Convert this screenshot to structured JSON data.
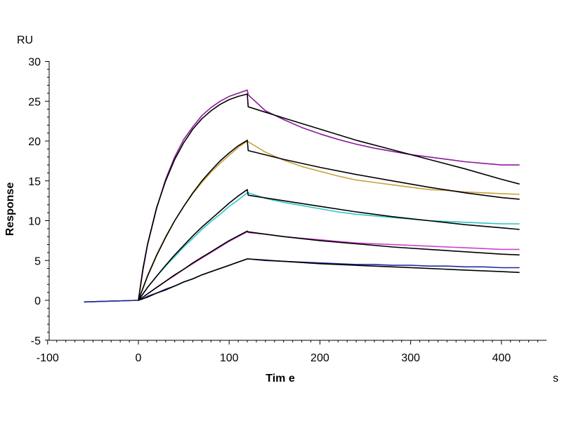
{
  "chart_data": {
    "type": "line",
    "xlabel": "Tim e",
    "ylabel": "Response",
    "x_unit": "s",
    "y_unit": "RU",
    "xlim": [
      -100,
      450
    ],
    "ylim": [
      -5,
      30
    ],
    "x_ticks": [
      -100,
      0,
      100,
      200,
      300,
      400
    ],
    "y_ticks": [
      -5,
      0,
      5,
      10,
      15,
      20,
      25,
      30
    ],
    "x_tick_labels": [
      "-100",
      "0",
      "100",
      "200",
      "300",
      "400"
    ],
    "y_tick_labels": [
      "-5",
      "0",
      "5",
      "10",
      "15",
      "20",
      "25",
      "30"
    ],
    "grid": false,
    "legend": "none",
    "series": [
      {
        "color": "#8b1a9b",
        "x": [
          -60,
          0,
          5,
          10,
          20,
          30,
          40,
          50,
          60,
          70,
          80,
          90,
          100,
          110,
          120,
          121,
          140,
          160,
          180,
          200,
          220,
          240,
          260,
          280,
          300,
          320,
          340,
          360,
          380,
          400,
          420
        ],
        "y": [
          -0.2,
          0,
          3.8,
          6.9,
          11.5,
          15.2,
          18.0,
          20.2,
          21.8,
          23.2,
          24.2,
          25.0,
          25.6,
          26.0,
          26.4,
          25.8,
          23.8,
          22.7,
          21.7,
          20.9,
          20.2,
          19.6,
          19.1,
          18.7,
          18.3,
          18.0,
          17.7,
          17.4,
          17.2,
          17.0,
          17.0
        ]
      },
      {
        "color": "#c8a13a",
        "x": [
          -60,
          0,
          5,
          10,
          20,
          30,
          40,
          50,
          60,
          70,
          80,
          90,
          100,
          110,
          120,
          121,
          140,
          160,
          180,
          200,
          220,
          240,
          260,
          280,
          300,
          320,
          340,
          360,
          380,
          400,
          420
        ],
        "y": [
          -0.2,
          0,
          1.6,
          3.1,
          5.7,
          8.0,
          10.0,
          11.8,
          13.4,
          14.8,
          16.1,
          17.2,
          18.2,
          19.2,
          20.0,
          19.9,
          18.6,
          17.6,
          16.8,
          16.2,
          15.6,
          15.1,
          14.8,
          14.5,
          14.2,
          13.9,
          13.8,
          13.6,
          13.5,
          13.4,
          13.3
        ]
      },
      {
        "color": "#2ec4c4",
        "x": [
          -60,
          0,
          5,
          10,
          20,
          30,
          40,
          50,
          60,
          70,
          80,
          90,
          100,
          110,
          120,
          121,
          140,
          160,
          180,
          200,
          220,
          240,
          260,
          280,
          300,
          320,
          340,
          360,
          380,
          400,
          420
        ],
        "y": [
          -0.2,
          0,
          0.8,
          1.6,
          3.0,
          4.3,
          5.5,
          6.7,
          7.8,
          8.9,
          9.9,
          10.8,
          11.8,
          12.6,
          13.5,
          13.5,
          12.8,
          12.3,
          11.9,
          11.5,
          11.1,
          10.8,
          10.6,
          10.4,
          10.2,
          10.0,
          9.9,
          9.8,
          9.7,
          9.6,
          9.6
        ]
      },
      {
        "color": "#cc44cc",
        "x": [
          -60,
          0,
          5,
          10,
          20,
          30,
          40,
          50,
          60,
          70,
          80,
          90,
          100,
          110,
          120,
          121,
          140,
          160,
          180,
          200,
          220,
          240,
          260,
          280,
          300,
          320,
          340,
          360,
          380,
          400,
          420
        ],
        "y": [
          -0.2,
          0,
          0.4,
          0.8,
          1.6,
          2.4,
          3.1,
          3.9,
          4.6,
          5.3,
          6.0,
          6.7,
          7.4,
          8.0,
          8.6,
          8.5,
          8.3,
          8.0,
          7.8,
          7.6,
          7.4,
          7.2,
          7.1,
          7.0,
          6.9,
          6.8,
          6.7,
          6.6,
          6.5,
          6.4,
          6.4
        ]
      },
      {
        "color": "#1f2c9e",
        "x": [
          -60,
          0,
          5,
          10,
          20,
          30,
          40,
          50,
          60,
          70,
          80,
          90,
          100,
          110,
          120,
          121,
          140,
          160,
          180,
          200,
          220,
          240,
          260,
          280,
          300,
          320,
          340,
          360,
          380,
          400,
          420
        ],
        "y": [
          -0.2,
          0,
          0.2,
          0.5,
          0.9,
          1.4,
          1.8,
          2.3,
          2.7,
          3.2,
          3.6,
          4.0,
          4.4,
          4.8,
          5.2,
          5.2,
          5.0,
          4.9,
          4.8,
          4.7,
          4.6,
          4.5,
          4.5,
          4.4,
          4.4,
          4.3,
          4.3,
          4.2,
          4.2,
          4.1,
          4.1
        ]
      },
      {
        "color": "#000000",
        "x": [
          0,
          5,
          10,
          20,
          30,
          40,
          50,
          60,
          70,
          80,
          90,
          100,
          110,
          120,
          121,
          160,
          200,
          240,
          280,
          320,
          360,
          400,
          420
        ],
        "y": [
          0,
          4.0,
          7.0,
          11.6,
          15.0,
          17.7,
          19.8,
          21.5,
          22.8,
          23.8,
          24.6,
          25.2,
          25.6,
          25.9,
          24.3,
          22.9,
          21.5,
          20.1,
          18.9,
          17.7,
          16.5,
          15.2,
          14.6
        ]
      },
      {
        "color": "#000000",
        "x": [
          0,
          5,
          10,
          20,
          30,
          40,
          50,
          60,
          70,
          80,
          90,
          100,
          110,
          120,
          121,
          160,
          200,
          240,
          280,
          320,
          360,
          400,
          420
        ],
        "y": [
          0,
          1.5,
          3.0,
          5.6,
          7.9,
          10.0,
          11.8,
          13.5,
          15.0,
          16.3,
          17.5,
          18.5,
          19.4,
          20.1,
          18.8,
          17.7,
          16.7,
          15.8,
          15.0,
          14.2,
          13.5,
          12.9,
          12.7
        ]
      },
      {
        "color": "#000000",
        "x": [
          0,
          5,
          10,
          20,
          30,
          40,
          50,
          60,
          70,
          80,
          90,
          100,
          110,
          120,
          121,
          160,
          200,
          240,
          280,
          320,
          360,
          400,
          420
        ],
        "y": [
          0,
          0.8,
          1.6,
          3.0,
          4.4,
          5.7,
          6.9,
          8.1,
          9.2,
          10.2,
          11.2,
          12.2,
          13.1,
          13.9,
          13.2,
          12.5,
          11.8,
          11.1,
          10.5,
          10.0,
          9.5,
          9.1,
          8.9
        ]
      },
      {
        "color": "#000000",
        "x": [
          0,
          5,
          10,
          20,
          30,
          40,
          50,
          60,
          70,
          80,
          90,
          100,
          110,
          120,
          121,
          160,
          200,
          240,
          280,
          320,
          360,
          400,
          420
        ],
        "y": [
          0,
          0.4,
          0.8,
          1.6,
          2.4,
          3.2,
          3.9,
          4.7,
          5.4,
          6.1,
          6.8,
          7.5,
          8.1,
          8.7,
          8.6,
          8.0,
          7.5,
          7.1,
          6.7,
          6.4,
          6.1,
          5.8,
          5.7
        ]
      },
      {
        "color": "#000000",
        "x": [
          0,
          5,
          10,
          20,
          30,
          40,
          50,
          60,
          70,
          80,
          90,
          100,
          110,
          120,
          121,
          160,
          200,
          240,
          280,
          320,
          360,
          400,
          420
        ],
        "y": [
          0,
          0.2,
          0.4,
          0.9,
          1.3,
          1.8,
          2.3,
          2.7,
          3.2,
          3.6,
          4.0,
          4.4,
          4.8,
          5.2,
          5.2,
          4.9,
          4.6,
          4.4,
          4.2,
          4.0,
          3.8,
          3.6,
          3.5
        ]
      }
    ]
  }
}
